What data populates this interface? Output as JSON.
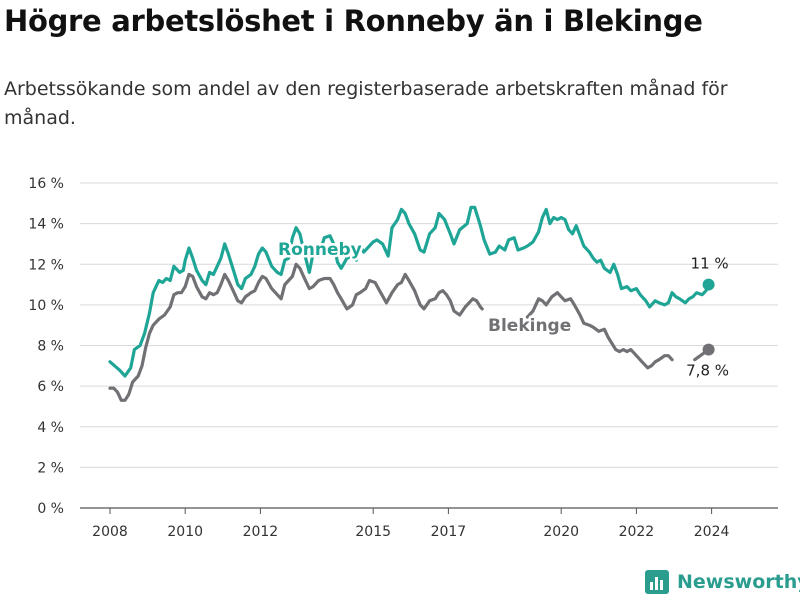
{
  "title": "Högre arbetslöshet i Ronneby än i Blekinge",
  "subtitle": "Arbetssökande som andel av den registerbaserade arbetskraften månad för månad.",
  "brand": "Newsworthy",
  "colors": {
    "ronneby": "#1fa596",
    "blekinge": "#717175",
    "grid": "#d9d9d9"
  },
  "chart_data": {
    "type": "line",
    "title": "Högre arbetslöshet i Ronneby än i Blekinge",
    "ylabel": "",
    "xlabel": "",
    "ylim": [
      0,
      16
    ],
    "y_ticks": [
      "0 %",
      "2 %",
      "4 %",
      "6 %",
      "8 %",
      "10 %",
      "12 %",
      "14 %",
      "16 %"
    ],
    "x_ticks": [
      "2008",
      "2010",
      "2012",
      "2015",
      "2017",
      "2020",
      "2022",
      "2024"
    ],
    "grid": true,
    "series": [
      {
        "name": "Ronneby",
        "end_label": "11 %",
        "points": [
          [
            2008.0,
            7.2
          ],
          [
            2008.25,
            6.8
          ],
          [
            2008.4,
            6.5
          ],
          [
            2008.55,
            6.9
          ],
          [
            2008.65,
            7.8
          ],
          [
            2008.8,
            8.0
          ],
          [
            2008.92,
            8.6
          ],
          [
            2009.05,
            9.6
          ],
          [
            2009.15,
            10.6
          ],
          [
            2009.3,
            11.2
          ],
          [
            2009.4,
            11.1
          ],
          [
            2009.5,
            11.3
          ],
          [
            2009.6,
            11.2
          ],
          [
            2009.7,
            11.9
          ],
          [
            2009.85,
            11.6
          ],
          [
            2009.95,
            11.7
          ],
          [
            2010.0,
            12.2
          ],
          [
            2010.1,
            12.8
          ],
          [
            2010.2,
            12.3
          ],
          [
            2010.3,
            11.7
          ],
          [
            2010.45,
            11.2
          ],
          [
            2010.55,
            11.0
          ],
          [
            2010.65,
            11.6
          ],
          [
            2010.75,
            11.5
          ],
          [
            2010.85,
            11.9
          ],
          [
            2010.95,
            12.3
          ],
          [
            2011.05,
            13.0
          ],
          [
            2011.15,
            12.5
          ],
          [
            2011.3,
            11.6
          ],
          [
            2011.4,
            11.0
          ],
          [
            2011.5,
            10.8
          ],
          [
            2011.6,
            11.3
          ],
          [
            2011.75,
            11.5
          ],
          [
            2011.85,
            11.9
          ],
          [
            2011.95,
            12.5
          ],
          [
            2012.05,
            12.8
          ],
          [
            2012.15,
            12.6
          ],
          [
            2012.3,
            11.9
          ],
          [
            2012.45,
            11.6
          ],
          [
            2012.55,
            11.5
          ],
          [
            2012.65,
            12.2
          ],
          [
            2012.75,
            12.3
          ],
          [
            2012.85,
            13.3
          ],
          [
            2012.95,
            13.8
          ],
          [
            2013.05,
            13.5
          ],
          [
            2013.15,
            12.7
          ],
          [
            2013.3,
            11.6
          ],
          [
            2013.4,
            12.5
          ],
          [
            2013.55,
            12.4
          ],
          [
            2013.7,
            13.3
          ],
          [
            2013.85,
            13.4
          ],
          [
            2013.95,
            13.0
          ],
          [
            2014.05,
            12.1
          ],
          [
            2014.15,
            11.8
          ],
          [
            2014.3,
            12.3
          ],
          [
            2014.45,
            12.4
          ],
          [
            2014.55,
            12.2
          ],
          [
            2014.65,
            12.9
          ],
          [
            2014.75,
            12.6
          ],
          [
            2014.9,
            12.9
          ],
          [
            2015.0,
            13.1
          ],
          [
            2015.1,
            13.2
          ],
          [
            2015.25,
            13.0
          ],
          [
            2015.4,
            12.4
          ],
          [
            2015.5,
            13.8
          ],
          [
            2015.65,
            14.2
          ],
          [
            2015.75,
            14.7
          ],
          [
            2015.85,
            14.5
          ],
          [
            2015.95,
            14.0
          ],
          [
            2016.1,
            13.5
          ],
          [
            2016.25,
            12.7
          ],
          [
            2016.35,
            12.6
          ],
          [
            2016.5,
            13.5
          ],
          [
            2016.65,
            13.8
          ],
          [
            2016.75,
            14.5
          ],
          [
            2016.9,
            14.2
          ],
          [
            2017.05,
            13.5
          ],
          [
            2017.15,
            13.0
          ],
          [
            2017.3,
            13.7
          ],
          [
            2017.5,
            14.0
          ],
          [
            2017.6,
            14.8
          ],
          [
            2017.7,
            14.8
          ],
          [
            2017.85,
            13.9
          ],
          [
            2017.95,
            13.2
          ],
          [
            2018.1,
            12.5
          ],
          [
            2018.25,
            12.6
          ],
          [
            2018.35,
            12.9
          ],
          [
            2018.5,
            12.7
          ],
          [
            2018.6,
            13.2
          ],
          [
            2018.75,
            13.3
          ],
          [
            2018.85,
            12.7
          ],
          [
            2019.0,
            12.8
          ],
          [
            2019.1,
            12.9
          ],
          [
            2019.25,
            13.1
          ],
          [
            2019.4,
            13.6
          ],
          [
            2019.5,
            14.3
          ],
          [
            2019.6,
            14.7
          ],
          [
            2019.7,
            14.0
          ],
          [
            2019.8,
            14.3
          ],
          [
            2019.9,
            14.2
          ],
          [
            2020.0,
            14.3
          ],
          [
            2020.1,
            14.2
          ],
          [
            2020.2,
            13.7
          ],
          [
            2020.3,
            13.5
          ],
          [
            2020.4,
            13.9
          ],
          [
            2020.5,
            13.4
          ],
          [
            2020.6,
            12.9
          ],
          [
            2020.75,
            12.6
          ],
          [
            2020.85,
            12.3
          ],
          [
            2020.95,
            12.1
          ],
          [
            2021.05,
            12.2
          ],
          [
            2021.15,
            11.8
          ],
          [
            2021.3,
            11.6
          ],
          [
            2021.4,
            12.0
          ],
          [
            2021.5,
            11.5
          ],
          [
            2021.6,
            10.8
          ],
          [
            2021.75,
            10.9
          ],
          [
            2021.85,
            10.7
          ],
          [
            2022.0,
            10.8
          ],
          [
            2022.1,
            10.5
          ],
          [
            2022.25,
            10.2
          ],
          [
            2022.35,
            9.9
          ],
          [
            2022.5,
            10.2
          ],
          [
            2022.6,
            10.1
          ],
          [
            2022.75,
            10.0
          ],
          [
            2022.85,
            10.1
          ],
          [
            2022.95,
            10.6
          ],
          [
            2023.05,
            10.4
          ],
          [
            2023.15,
            10.3
          ],
          [
            2023.3,
            10.1
          ],
          [
            2023.4,
            10.3
          ],
          [
            2023.5,
            10.4
          ],
          [
            2023.6,
            10.6
          ],
          [
            2023.75,
            10.5
          ],
          [
            2023.85,
            10.7
          ],
          [
            2023.92,
            11.0
          ]
        ]
      },
      {
        "name": "Blekinge",
        "end_label": "7,8 %",
        "points": [
          [
            2008.0,
            5.9
          ],
          [
            2008.1,
            5.9
          ],
          [
            2008.2,
            5.7
          ],
          [
            2008.3,
            5.3
          ],
          [
            2008.4,
            5.3
          ],
          [
            2008.5,
            5.6
          ],
          [
            2008.6,
            6.2
          ],
          [
            2008.75,
            6.5
          ],
          [
            2008.85,
            7.0
          ],
          [
            2008.95,
            7.9
          ],
          [
            2009.05,
            8.6
          ],
          [
            2009.15,
            9.0
          ],
          [
            2009.3,
            9.3
          ],
          [
            2009.45,
            9.5
          ],
          [
            2009.6,
            9.9
          ],
          [
            2009.7,
            10.5
          ],
          [
            2009.8,
            10.6
          ],
          [
            2009.9,
            10.6
          ],
          [
            2010.0,
            10.9
          ],
          [
            2010.1,
            11.5
          ],
          [
            2010.2,
            11.4
          ],
          [
            2010.3,
            10.9
          ],
          [
            2010.45,
            10.4
          ],
          [
            2010.55,
            10.3
          ],
          [
            2010.65,
            10.6
          ],
          [
            2010.75,
            10.5
          ],
          [
            2010.85,
            10.6
          ],
          [
            2010.95,
            11.0
          ],
          [
            2011.05,
            11.5
          ],
          [
            2011.15,
            11.2
          ],
          [
            2011.3,
            10.6
          ],
          [
            2011.4,
            10.2
          ],
          [
            2011.5,
            10.1
          ],
          [
            2011.6,
            10.4
          ],
          [
            2011.75,
            10.6
          ],
          [
            2011.85,
            10.7
          ],
          [
            2011.95,
            11.1
          ],
          [
            2012.05,
            11.4
          ],
          [
            2012.15,
            11.3
          ],
          [
            2012.3,
            10.8
          ],
          [
            2012.45,
            10.5
          ],
          [
            2012.55,
            10.3
          ],
          [
            2012.65,
            11.0
          ],
          [
            2012.75,
            11.2
          ],
          [
            2012.85,
            11.4
          ],
          [
            2012.95,
            12.0
          ],
          [
            2013.05,
            11.8
          ],
          [
            2013.15,
            11.4
          ],
          [
            2013.3,
            10.8
          ],
          [
            2013.4,
            10.9
          ],
          [
            2013.55,
            11.2
          ],
          [
            2013.7,
            11.3
          ],
          [
            2013.85,
            11.3
          ],
          [
            2013.95,
            11.0
          ],
          [
            2014.05,
            10.6
          ],
          [
            2014.15,
            10.3
          ],
          [
            2014.3,
            9.8
          ],
          [
            2014.45,
            10.0
          ],
          [
            2014.55,
            10.5
          ],
          [
            2014.65,
            10.6
          ],
          [
            2014.8,
            10.8
          ],
          [
            2014.9,
            11.2
          ],
          [
            2015.05,
            11.1
          ],
          [
            2015.2,
            10.6
          ],
          [
            2015.35,
            10.1
          ],
          [
            2015.5,
            10.6
          ],
          [
            2015.65,
            11.0
          ],
          [
            2015.75,
            11.1
          ],
          [
            2015.85,
            11.5
          ],
          [
            2015.95,
            11.2
          ],
          [
            2016.1,
            10.7
          ],
          [
            2016.25,
            10.0
          ],
          [
            2016.35,
            9.8
          ],
          [
            2016.5,
            10.2
          ],
          [
            2016.65,
            10.3
          ],
          [
            2016.75,
            10.6
          ],
          [
            2016.85,
            10.7
          ],
          [
            2016.95,
            10.5
          ],
          [
            2017.05,
            10.2
          ],
          [
            2017.15,
            9.7
          ],
          [
            2017.3,
            9.5
          ],
          [
            2017.45,
            9.9
          ],
          [
            2017.55,
            10.1
          ],
          [
            2017.65,
            10.3
          ],
          [
            2017.75,
            10.2
          ],
          [
            2017.85,
            9.9
          ],
          [
            2017.9,
            9.8
          ],
          [
            2019.1,
            9.4
          ],
          [
            2019.25,
            9.7
          ],
          [
            2019.4,
            10.3
          ],
          [
            2019.5,
            10.2
          ],
          [
            2019.6,
            10.0
          ],
          [
            2019.75,
            10.4
          ],
          [
            2019.9,
            10.6
          ],
          [
            2020.0,
            10.4
          ],
          [
            2020.1,
            10.2
          ],
          [
            2020.25,
            10.3
          ],
          [
            2020.35,
            10.0
          ],
          [
            2020.5,
            9.5
          ],
          [
            2020.6,
            9.1
          ],
          [
            2020.75,
            9.0
          ],
          [
            2020.85,
            8.9
          ],
          [
            2021.0,
            8.7
          ],
          [
            2021.15,
            8.8
          ],
          [
            2021.25,
            8.4
          ],
          [
            2021.35,
            8.1
          ],
          [
            2021.45,
            7.8
          ],
          [
            2021.55,
            7.7
          ],
          [
            2021.65,
            7.8
          ],
          [
            2021.75,
            7.7
          ],
          [
            2021.85,
            7.8
          ],
          [
            2021.95,
            7.6
          ],
          [
            2022.05,
            7.4
          ],
          [
            2022.15,
            7.2
          ],
          [
            2022.3,
            6.9
          ],
          [
            2022.4,
            7.0
          ],
          [
            2022.5,
            7.2
          ],
          [
            2022.6,
            7.3
          ],
          [
            2022.75,
            7.5
          ],
          [
            2022.85,
            7.5
          ],
          [
            2022.95,
            7.3
          ],
          [
            2023.55,
            7.3
          ],
          [
            2023.7,
            7.5
          ],
          [
            2023.85,
            7.7
          ],
          [
            2023.92,
            7.8
          ]
        ]
      }
    ]
  }
}
